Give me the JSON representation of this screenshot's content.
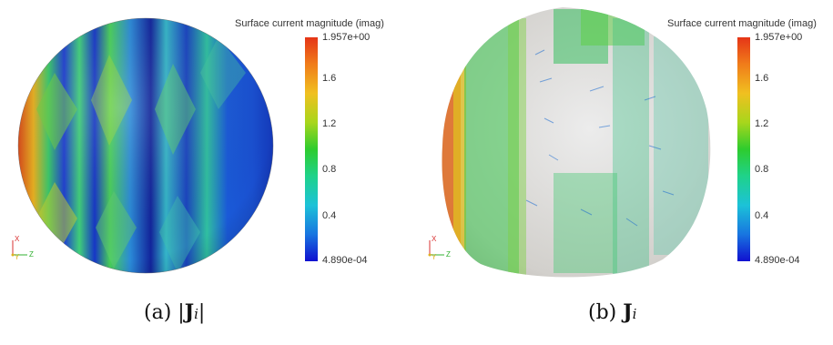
{
  "panels": [
    {
      "legend": {
        "title": "Surface current magnitude (imag)",
        "max_label": "1.957e+00",
        "min_label": "4.890e-04",
        "ticks": [
          "1.6",
          "1.2",
          "0.8",
          "0.4"
        ]
      },
      "caption": {
        "prefix": "(a) |",
        "bold": "J",
        "sub": "i",
        "suffix": "|"
      },
      "axes": {
        "x": "X",
        "y": "Y",
        "z": "Z"
      }
    },
    {
      "legend": {
        "title": "Surface current magnitude (imag)",
        "max_label": "1.957e+00",
        "min_label": "4.890e-04",
        "ticks": [
          "1.6",
          "1.2",
          "0.8",
          "0.4"
        ]
      },
      "caption": {
        "prefix": "(b) ",
        "bold": "J",
        "sub": "i",
        "suffix": ""
      },
      "axes": {
        "x": "X",
        "y": "Y",
        "z": "Z"
      }
    }
  ],
  "colors": {
    "red": "#e53517",
    "yellow": "#e8d020",
    "green": "#2ecc2e",
    "cyan": "#1cc2d8",
    "blue": "#1010d0"
  }
}
